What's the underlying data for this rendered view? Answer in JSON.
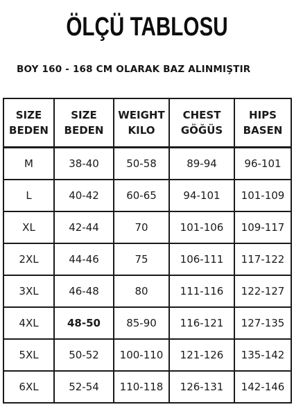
{
  "title": "ÖLÇÜ TABLOSU",
  "subtitle": "BOY 160 - 168 CM OLARAK BAZ ALINMIŞTIR",
  "table": {
    "headers": [
      [
        "SIZE",
        "BEDEN"
      ],
      [
        "SIZE",
        "BEDEN"
      ],
      [
        "WEIGHT",
        "KILO"
      ],
      [
        "CHEST",
        "GÖĞÜS"
      ],
      [
        "HIPS",
        "BASEN"
      ]
    ],
    "rows": [
      [
        "M",
        "38-40",
        "50-58",
        "89-94",
        "96-101"
      ],
      [
        "L",
        "40-42",
        "60-65",
        "94-101",
        "101-109"
      ],
      [
        "XL",
        "42-44",
        "70",
        "101-106",
        "109-117"
      ],
      [
        "2XL",
        "44-46",
        "75",
        "106-111",
        "117-122"
      ],
      [
        "3XL",
        "46-48",
        "80",
        "111-116",
        "122-127"
      ],
      [
        "4XL",
        "48-50",
        "85-90",
        "116-121",
        "127-135"
      ],
      [
        "5XL",
        "50-52",
        "100-110",
        "121-126",
        "135-142"
      ],
      [
        "6XL",
        "52-54",
        "110-118",
        "126-131",
        "142-146"
      ]
    ]
  }
}
